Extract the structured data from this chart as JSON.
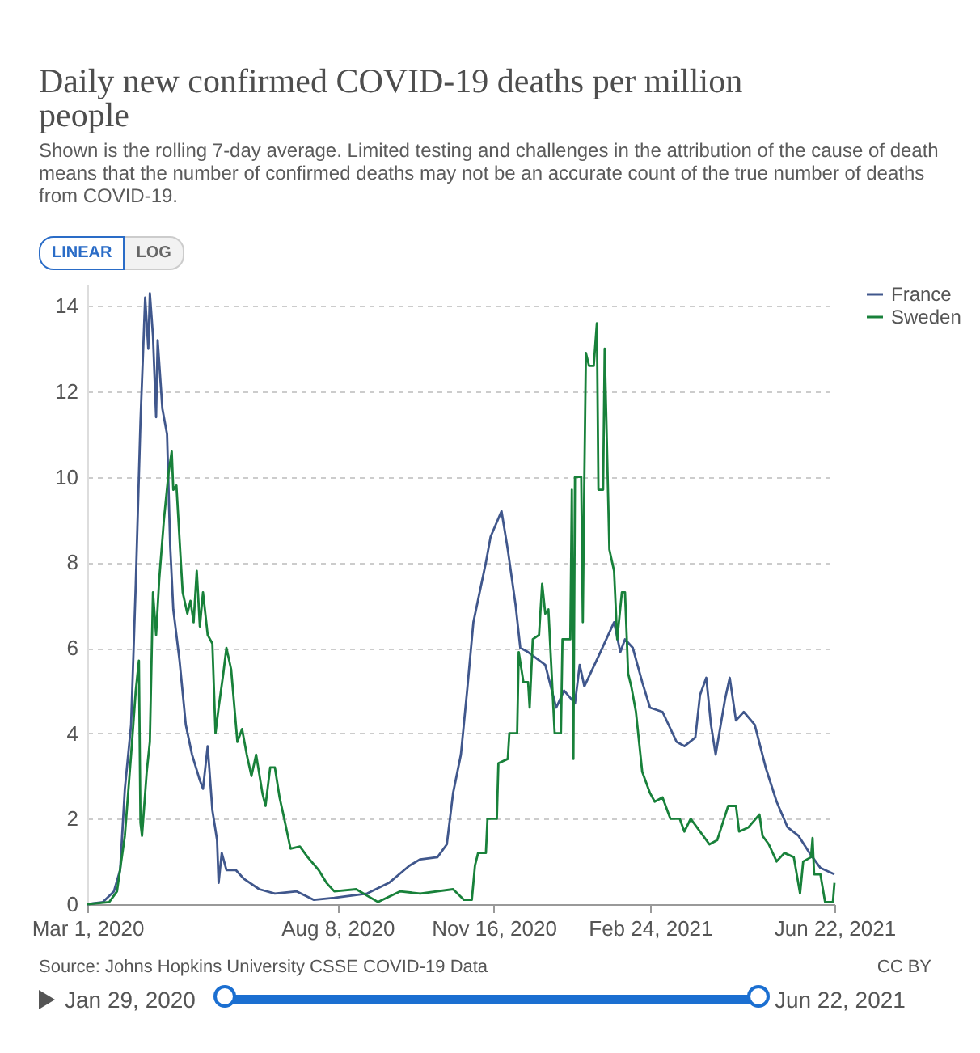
{
  "chart_data": {
    "type": "line",
    "title": "Daily new confirmed COVID-19 deaths per million people",
    "subtitle": "Shown is the rolling 7-day average. Limited testing and challenges in the attribution of the cause of death means that the number of confirmed deaths may not be an accurate count of the true number of deaths from COVID-19.",
    "annotations": [
      "Source: Johns Hopkins University CSSE COVID-19 Data",
      "CC BY",
      "LINEAR",
      "LOG",
      "Jan 29, 2020",
      "Jun 22, 2021"
    ],
    "xlim": [
      "2020-03-01",
      "2021-06-22"
    ],
    "xticks": [
      {
        "value": "2020-03-01",
        "label": "Mar 1, 2020"
      },
      {
        "value": "2020-08-08",
        "label": "Aug 8, 2020"
      },
      {
        "value": "2020-11-16",
        "label": "Nov 16, 2020"
      },
      {
        "value": "2021-02-24",
        "label": "Feb 24, 2021"
      },
      {
        "value": "2021-06-22",
        "label": "Jun 22, 2021"
      }
    ],
    "ylim": [
      0,
      14.5
    ],
    "yticks": [
      0,
      2,
      4,
      6,
      8,
      10,
      12,
      14
    ],
    "grid": "y",
    "legend": "right",
    "marker": "none",
    "line_style": "solid",
    "series": [
      {
        "name": "France",
        "color": "#40578c",
        "x": [
          "2020-03-01",
          "2020-03-11",
          "2020-03-18",
          "2020-03-22",
          "2020-03-25",
          "2020-03-29",
          "2020-04-01",
          "2020-04-04",
          "2020-04-07",
          "2020-04-09",
          "2020-04-10",
          "2020-04-12",
          "2020-04-14",
          "2020-04-15",
          "2020-04-18",
          "2020-04-21",
          "2020-04-23",
          "2020-04-25",
          "2020-04-29",
          "2020-05-03",
          "2020-05-07",
          "2020-05-12",
          "2020-05-14",
          "2020-05-17",
          "2020-05-20",
          "2020-05-23",
          "2020-05-24",
          "2020-05-26",
          "2020-05-29",
          "2020-06-04",
          "2020-06-09",
          "2020-06-19",
          "2020-06-29",
          "2020-07-13",
          "2020-07-24",
          "2020-08-06",
          "2020-08-27",
          "2020-09-10",
          "2020-09-23",
          "2020-09-30",
          "2020-10-11",
          "2020-10-17",
          "2020-10-21",
          "2020-10-26",
          "2020-10-30",
          "2020-11-03",
          "2020-11-07",
          "2020-11-11",
          "2020-11-14",
          "2020-11-21",
          "2020-11-25",
          "2020-11-30",
          "2020-12-03",
          "2020-12-08",
          "2020-12-19",
          "2020-12-26",
          "2020-12-31",
          "2021-01-07",
          "2021-01-10",
          "2021-01-13",
          "2021-01-22",
          "2021-02-01",
          "2021-02-05",
          "2021-02-08",
          "2021-02-13",
          "2021-02-19",
          "2021-02-24",
          "2021-03-04",
          "2021-03-13",
          "2021-03-18",
          "2021-03-25",
          "2021-03-28",
          "2021-04-01",
          "2021-04-04",
          "2021-04-07",
          "2021-04-13",
          "2021-04-16",
          "2021-04-20",
          "2021-04-25",
          "2021-05-02",
          "2021-05-09",
          "2021-05-16",
          "2021-05-23",
          "2021-05-30",
          "2021-06-06",
          "2021-06-13",
          "2021-06-22"
        ],
        "values": [
          0,
          0.05,
          0.3,
          0.8,
          2.7,
          4.2,
          7.5,
          11.3,
          14.2,
          13,
          14.3,
          13.3,
          11.4,
          13.2,
          11.6,
          11,
          8.4,
          6.9,
          5.7,
          4.2,
          3.5,
          2.9,
          2.7,
          3.7,
          2.2,
          1.5,
          0.5,
          1.2,
          0.8,
          0.8,
          0.6,
          0.35,
          0.25,
          0.3,
          0.1,
          0.15,
          0.25,
          0.5,
          0.9,
          1.05,
          1.1,
          1.4,
          2.6,
          3.5,
          5,
          6.6,
          7.3,
          8,
          8.6,
          9.2,
          8.3,
          7,
          6,
          5.9,
          5.6,
          4.6,
          5,
          4.7,
          5.6,
          5.1,
          5.8,
          6.6,
          5.9,
          6.2,
          6,
          5.2,
          4.6,
          4.5,
          3.8,
          3.7,
          3.9,
          4.9,
          5.3,
          4.2,
          3.5,
          4.8,
          5.3,
          4.3,
          4.5,
          4.2,
          3.2,
          2.4,
          1.8,
          1.6,
          1.2,
          0.85,
          0.7
        ]
      },
      {
        "name": "Sweden",
        "color": "#18813a",
        "x": [
          "2020-03-01",
          "2020-03-15",
          "2020-03-20",
          "2020-03-25",
          "2020-03-29",
          "2020-04-01",
          "2020-04-03",
          "2020-04-04",
          "2020-04-05",
          "2020-04-08",
          "2020-04-10",
          "2020-04-12",
          "2020-04-14",
          "2020-04-16",
          "2020-04-19",
          "2020-04-22",
          "2020-04-24",
          "2020-04-25",
          "2020-04-27",
          "2020-04-30",
          "2020-05-01",
          "2020-05-04",
          "2020-05-06",
          "2020-05-08",
          "2020-05-10",
          "2020-05-12",
          "2020-05-14",
          "2020-05-17",
          "2020-05-20",
          "2020-05-22",
          "2020-05-24",
          "2020-05-27",
          "2020-05-29",
          "2020-06-01",
          "2020-06-05",
          "2020-06-08",
          "2020-06-11",
          "2020-06-14",
          "2020-06-17",
          "2020-06-21",
          "2020-06-23",
          "2020-06-26",
          "2020-06-29",
          "2020-07-02",
          "2020-07-05",
          "2020-07-09",
          "2020-07-15",
          "2020-07-20",
          "2020-07-27",
          "2020-08-01",
          "2020-08-06",
          "2020-08-20",
          "2020-09-03",
          "2020-09-17",
          "2020-09-30",
          "2020-10-21",
          "2020-10-28",
          "2020-11-02",
          "2020-11-04",
          "2020-11-06",
          "2020-11-11",
          "2020-11-12",
          "2020-11-18",
          "2020-11-19",
          "2020-11-25",
          "2020-11-26",
          "2020-12-01",
          "2020-12-02",
          "2020-12-05",
          "2020-12-08",
          "2020-12-09",
          "2020-12-11",
          "2020-12-15",
          "2020-12-17",
          "2020-12-19",
          "2020-12-21",
          "2020-12-25",
          "2020-12-29",
          "2020-12-30",
          "2021-01-04",
          "2021-01-05",
          "2021-01-06",
          "2021-01-07",
          "2021-01-11",
          "2021-01-12",
          "2021-01-13",
          "2021-01-14",
          "2021-01-16",
          "2021-01-19",
          "2021-01-21",
          "2021-01-22",
          "2021-01-25",
          "2021-01-26",
          "2021-01-29",
          "2021-02-01",
          "2021-02-03",
          "2021-02-06",
          "2021-02-08",
          "2021-02-10",
          "2021-02-12",
          "2021-02-15",
          "2021-02-19",
          "2021-02-24",
          "2021-02-27",
          "2021-03-04",
          "2021-03-09",
          "2021-03-15",
          "2021-03-18",
          "2021-03-22",
          "2021-03-28",
          "2021-04-03",
          "2021-04-08",
          "2021-04-15",
          "2021-04-20",
          "2021-04-22",
          "2021-04-28",
          "2021-05-05",
          "2021-05-07",
          "2021-05-11",
          "2021-05-16",
          "2021-05-21",
          "2021-05-27",
          "2021-05-31",
          "2021-06-02",
          "2021-06-07",
          "2021-06-08",
          "2021-06-09",
          "2021-06-13",
          "2021-06-16",
          "2021-06-21",
          "2021-06-22"
        ],
        "values": [
          0,
          0.05,
          0.3,
          1.6,
          3.5,
          5,
          5.7,
          1.9,
          1.6,
          3.1,
          3.8,
          7.3,
          6.3,
          7.6,
          9,
          10.1,
          10.6,
          9.7,
          9.8,
          7.9,
          7.3,
          6.8,
          7.1,
          6.6,
          7.8,
          6.5,
          7.3,
          6.3,
          6.1,
          4,
          4.6,
          5.4,
          6,
          5.5,
          3.8,
          4.1,
          3.5,
          3,
          3.5,
          2.6,
          2.3,
          3.2,
          3.2,
          2.5,
          2,
          1.3,
          1.35,
          1.1,
          0.8,
          0.5,
          0.3,
          0.35,
          0.05,
          0.3,
          0.25,
          0.35,
          0.1,
          0.1,
          0.9,
          1.2,
          1.2,
          2,
          2,
          3.3,
          3.4,
          4,
          4,
          5.9,
          5.2,
          5.2,
          4.6,
          6.2,
          6.3,
          7.5,
          6.8,
          6.9,
          4,
          4,
          6.2,
          6.2,
          9.7,
          3.4,
          10,
          10,
          6.6,
          10,
          12.9,
          12.6,
          12.6,
          13.6,
          9.7,
          9.7,
          13,
          8.3,
          7.8,
          6.2,
          7.3,
          7.3,
          5.4,
          5.1,
          4.5,
          3.1,
          2.6,
          2.4,
          2.5,
          2,
          2,
          1.7,
          2,
          1.7,
          1.4,
          1.5,
          2.3,
          2.3,
          1.7,
          1.8,
          2.1,
          1.6,
          1.4,
          1,
          1.2,
          1.1,
          0.25,
          1,
          1.1,
          1.55,
          0.7,
          0.7,
          0.05,
          0.05,
          0.5
        ]
      }
    ]
  }
}
